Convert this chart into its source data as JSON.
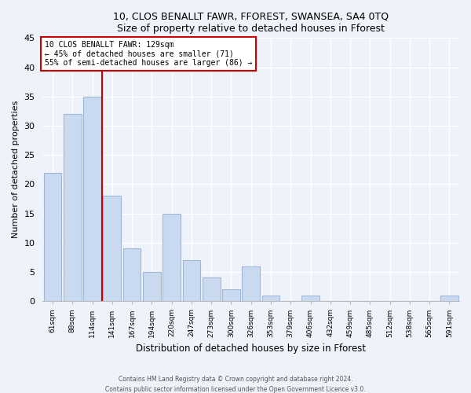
{
  "title": "10, CLOS BENALLT FAWR, FFOREST, SWANSEA, SA4 0TQ",
  "subtitle": "Size of property relative to detached houses in Fforest",
  "xlabel": "Distribution of detached houses by size in Fforest",
  "ylabel": "Number of detached properties",
  "bar_labels": [
    "61sqm",
    "88sqm",
    "114sqm",
    "141sqm",
    "167sqm",
    "194sqm",
    "220sqm",
    "247sqm",
    "273sqm",
    "300sqm",
    "326sqm",
    "353sqm",
    "379sqm",
    "406sqm",
    "432sqm",
    "459sqm",
    "485sqm",
    "512sqm",
    "538sqm",
    "565sqm",
    "591sqm"
  ],
  "bar_values": [
    22,
    32,
    35,
    18,
    9,
    5,
    15,
    7,
    4,
    2,
    6,
    1,
    0,
    1,
    0,
    0,
    0,
    0,
    0,
    0,
    1
  ],
  "bar_color": "#c9d9f0",
  "bar_edge_color": "#a0b8d8",
  "vline_x": 2.5,
  "vline_color": "#cc0000",
  "annotation_line1": "10 CLOS BENALLT FAWR: 129sqm",
  "annotation_line2": "← 45% of detached houses are smaller (71)",
  "annotation_line3": "55% of semi-detached houses are larger (86) →",
  "annotation_box_color": "white",
  "annotation_box_edge": "#cc0000",
  "ylim": [
    0,
    45
  ],
  "yticks": [
    0,
    5,
    10,
    15,
    20,
    25,
    30,
    35,
    40,
    45
  ],
  "footer1": "Contains HM Land Registry data © Crown copyright and database right 2024.",
  "footer2": "Contains public sector information licensed under the Open Government Licence v3.0.",
  "bg_color": "#eef2fa"
}
